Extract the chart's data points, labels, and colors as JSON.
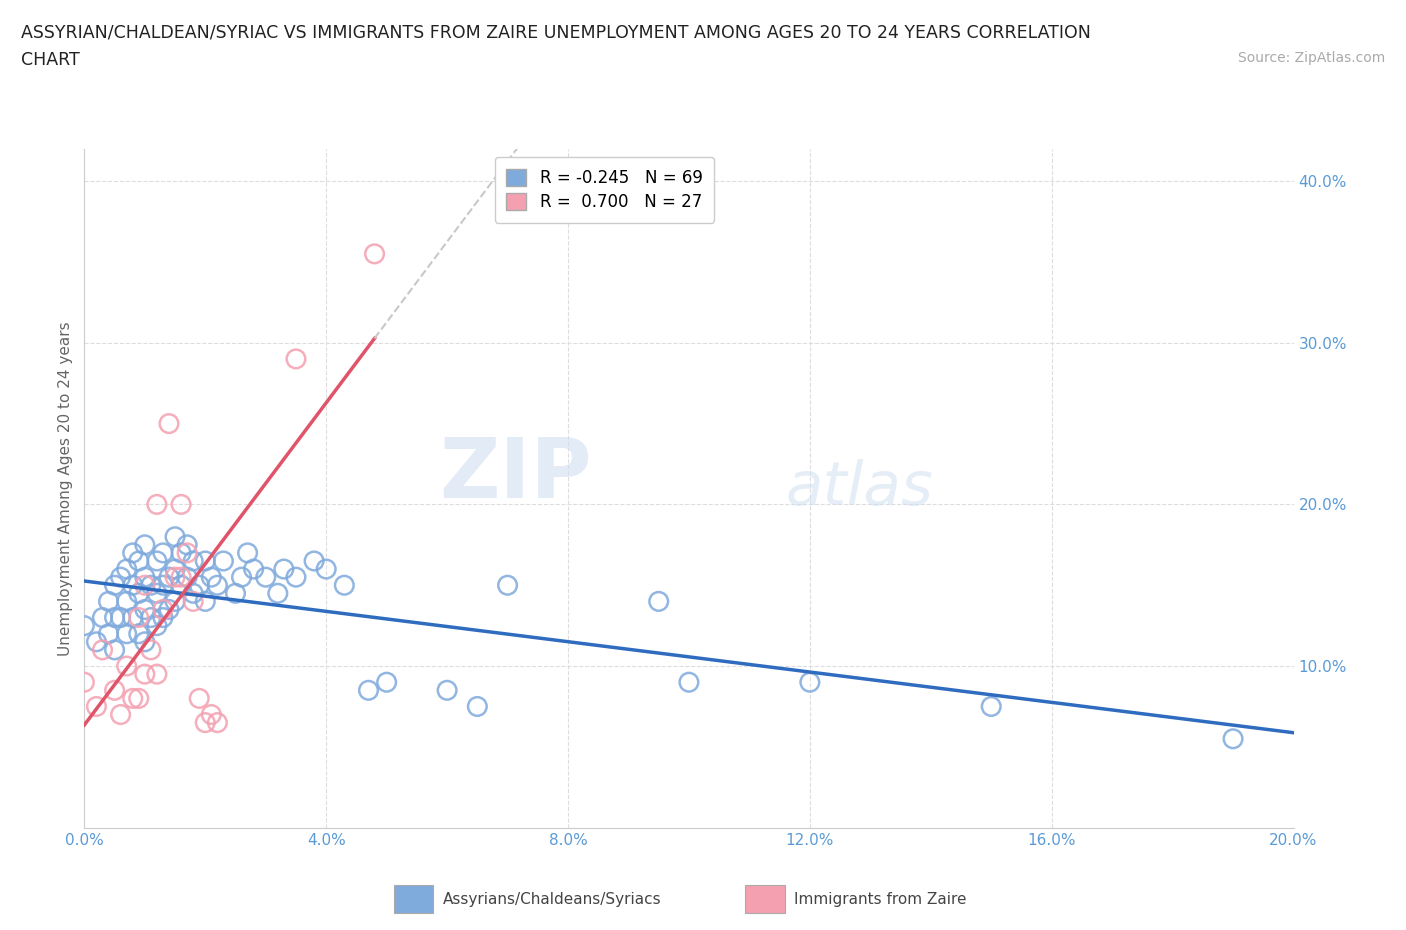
{
  "title_line1": "ASSYRIAN/CHALDEAN/SYRIAC VS IMMIGRANTS FROM ZAIRE UNEMPLOYMENT AMONG AGES 20 TO 24 YEARS CORRELATION",
  "title_line2": "CHART",
  "source_text": "Source: ZipAtlas.com",
  "ylabel": "Unemployment Among Ages 20 to 24 years",
  "xlim": [
    0.0,
    0.2
  ],
  "ylim": [
    0.0,
    0.42
  ],
  "xticks": [
    0.0,
    0.04,
    0.08,
    0.12,
    0.16,
    0.2
  ],
  "yticks": [
    0.0,
    0.1,
    0.2,
    0.3,
    0.4
  ],
  "ytick_labels": [
    "",
    "10.0%",
    "20.0%",
    "30.0%",
    "40.0%"
  ],
  "xtick_labels": [
    "0.0%",
    "4.0%",
    "8.0%",
    "12.0%",
    "16.0%",
    "20.0%"
  ],
  "blue_color": "#7faadc",
  "pink_color": "#f4a0b0",
  "blue_line_color": "#2f6cbf",
  "pink_line_color": "#e0546a",
  "trendline_dashed_color": "#c8c8c8",
  "R_blue": -0.245,
  "N_blue": 69,
  "R_pink": 0.7,
  "N_pink": 27,
  "watermark_zip": "ZIP",
  "watermark_atlas": "atlas",
  "background_color": "#ffffff",
  "grid_color": "#dddddd",
  "tick_color": "#5b9bd5",
  "blue_scatter_x": [
    0.0,
    0.002,
    0.003,
    0.004,
    0.004,
    0.005,
    0.005,
    0.005,
    0.006,
    0.006,
    0.007,
    0.007,
    0.007,
    0.008,
    0.008,
    0.008,
    0.009,
    0.009,
    0.009,
    0.01,
    0.01,
    0.01,
    0.01,
    0.011,
    0.011,
    0.012,
    0.012,
    0.012,
    0.013,
    0.013,
    0.013,
    0.014,
    0.014,
    0.015,
    0.015,
    0.015,
    0.016,
    0.016,
    0.017,
    0.017,
    0.018,
    0.018,
    0.019,
    0.02,
    0.02,
    0.021,
    0.022,
    0.023,
    0.025,
    0.026,
    0.027,
    0.028,
    0.03,
    0.032,
    0.033,
    0.035,
    0.038,
    0.04,
    0.043,
    0.047,
    0.05,
    0.06,
    0.065,
    0.07,
    0.095,
    0.1,
    0.12,
    0.15,
    0.19
  ],
  "blue_scatter_y": [
    0.125,
    0.115,
    0.13,
    0.12,
    0.14,
    0.11,
    0.13,
    0.15,
    0.13,
    0.155,
    0.12,
    0.14,
    0.16,
    0.13,
    0.15,
    0.17,
    0.12,
    0.145,
    0.165,
    0.115,
    0.135,
    0.155,
    0.175,
    0.13,
    0.15,
    0.125,
    0.145,
    0.165,
    0.13,
    0.15,
    0.17,
    0.135,
    0.155,
    0.14,
    0.16,
    0.18,
    0.15,
    0.17,
    0.155,
    0.175,
    0.145,
    0.165,
    0.15,
    0.14,
    0.165,
    0.155,
    0.15,
    0.165,
    0.145,
    0.155,
    0.17,
    0.16,
    0.155,
    0.145,
    0.16,
    0.155,
    0.165,
    0.16,
    0.15,
    0.085,
    0.09,
    0.085,
    0.075,
    0.15,
    0.14,
    0.09,
    0.09,
    0.075,
    0.055
  ],
  "pink_scatter_x": [
    0.0,
    0.002,
    0.003,
    0.005,
    0.006,
    0.007,
    0.008,
    0.009,
    0.009,
    0.01,
    0.01,
    0.011,
    0.012,
    0.012,
    0.013,
    0.014,
    0.015,
    0.016,
    0.016,
    0.017,
    0.018,
    0.019,
    0.02,
    0.021,
    0.022,
    0.035,
    0.048
  ],
  "pink_scatter_y": [
    0.09,
    0.075,
    0.11,
    0.085,
    0.07,
    0.1,
    0.08,
    0.13,
    0.08,
    0.095,
    0.15,
    0.11,
    0.095,
    0.2,
    0.135,
    0.25,
    0.155,
    0.155,
    0.2,
    0.17,
    0.14,
    0.08,
    0.065,
    0.07,
    0.065,
    0.29,
    0.355
  ]
}
